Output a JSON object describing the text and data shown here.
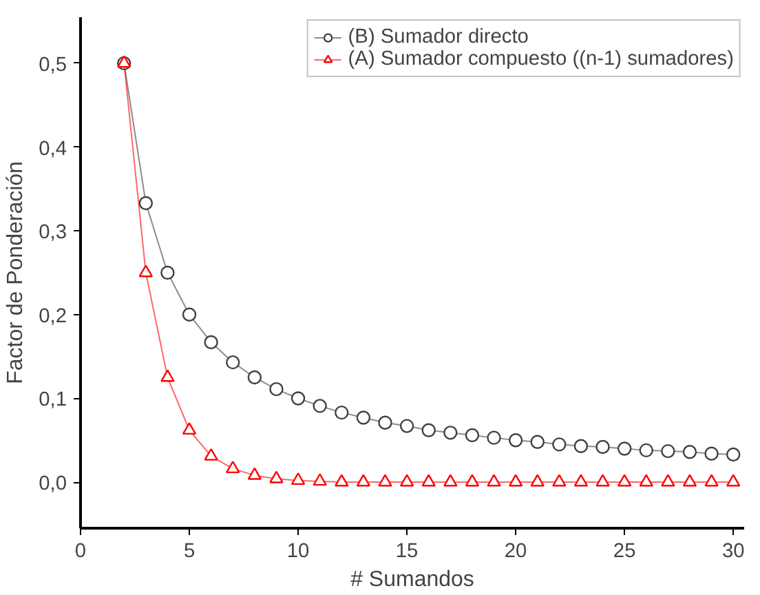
{
  "chart_data": {
    "type": "line",
    "xlabel": "# Sumandos",
    "ylabel": "Factor de Ponderación",
    "x": [
      2,
      3,
      4,
      5,
      6,
      7,
      8,
      9,
      10,
      11,
      12,
      13,
      14,
      15,
      16,
      17,
      18,
      19,
      20,
      21,
      22,
      23,
      24,
      25,
      26,
      27,
      28,
      29,
      30
    ],
    "series": [
      {
        "name": "(B) Sumador directo",
        "color": "#404040",
        "marker": "circle",
        "values": [
          0.5,
          0.333,
          0.25,
          0.2,
          0.167,
          0.143,
          0.125,
          0.111,
          0.1,
          0.091,
          0.083,
          0.077,
          0.071,
          0.067,
          0.062,
          0.059,
          0.056,
          0.053,
          0.05,
          0.048,
          0.045,
          0.043,
          0.042,
          0.04,
          0.038,
          0.037,
          0.036,
          0.034,
          0.033
        ]
      },
      {
        "name": "(A) Sumador compuesto ((n-1) sumadores)",
        "color": "#ff0000",
        "marker": "triangle",
        "values": [
          0.5,
          0.25,
          0.125,
          0.062,
          0.031,
          0.016,
          0.008,
          0.004,
          0.002,
          0.001,
          0,
          0,
          0,
          0,
          0,
          0,
          0,
          0,
          0,
          0,
          0,
          0,
          0,
          0,
          0,
          0,
          0,
          0,
          0
        ]
      }
    ],
    "xlim": [
      0,
      30.5
    ],
    "xticks": [
      0,
      5,
      10,
      15,
      20,
      25,
      30
    ],
    "ylim": [
      -0.055,
      0.555
    ],
    "yticks": [
      {
        "value": 0.0,
        "label": "0,0"
      },
      {
        "value": 0.1,
        "label": "0,1"
      },
      {
        "value": 0.2,
        "label": "0,2"
      },
      {
        "value": 0.3,
        "label": "0,3"
      },
      {
        "value": 0.4,
        "label": "0,4"
      },
      {
        "value": 0.5,
        "label": "0,5"
      }
    ],
    "grid": false,
    "legend": "top right",
    "line_style": "solid"
  }
}
